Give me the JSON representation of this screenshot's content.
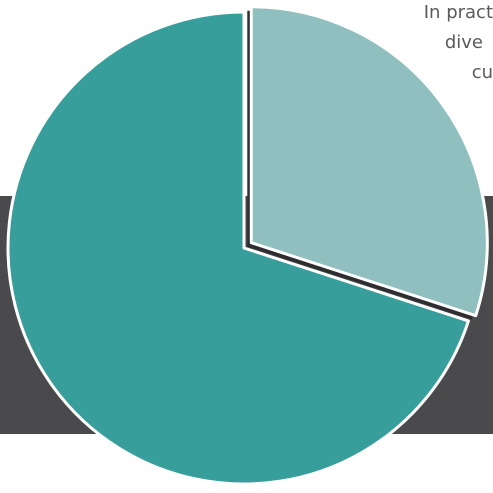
{
  "caption": {
    "line1": "In pract",
    "line2": "dive",
    "line3": "cu"
  },
  "colors": {
    "backdrop": "#4a4a4c",
    "slice_dark": "#379e9c",
    "slice_light": "#8fbfbe",
    "separator": "#ffffff",
    "text": "#5a5a5a"
  },
  "chart_data": {
    "type": "pie",
    "title": "",
    "slices": [
      {
        "label": "",
        "value": 30,
        "color": "#8fbfbe",
        "exploded": true
      },
      {
        "label": "",
        "value": 70,
        "color": "#379e9c",
        "exploded": false
      }
    ]
  }
}
